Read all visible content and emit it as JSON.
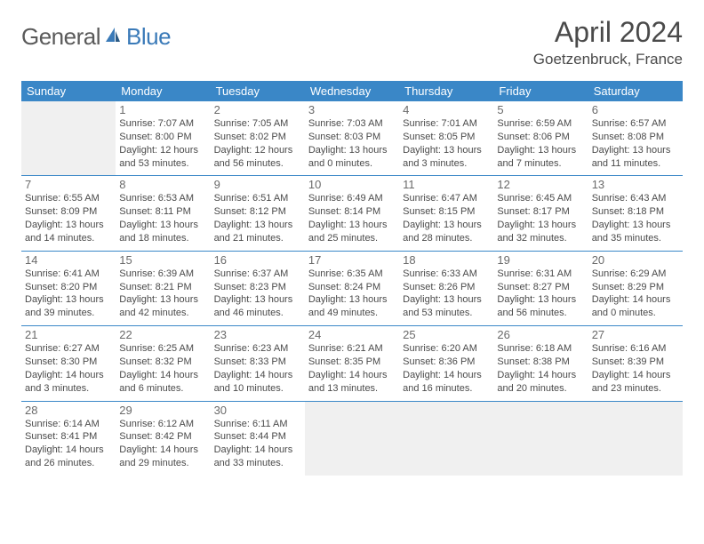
{
  "brand": {
    "part1": "General",
    "part2": "Blue"
  },
  "title": "April 2024",
  "location": "Goetzenbruck, France",
  "colors": {
    "header_bg": "#3a87c7",
    "header_fg": "#ffffff",
    "rule": "#3a87c7",
    "shaded_bg": "#f0f0f0",
    "text": "#4a4a4a",
    "brand_blue": "#3a7ab8"
  },
  "dayNames": [
    "Sunday",
    "Monday",
    "Tuesday",
    "Wednesday",
    "Thursday",
    "Friday",
    "Saturday"
  ],
  "weeks": [
    [
      {
        "empty": true,
        "shaded": true
      },
      {
        "day": "1",
        "sunrise": "Sunrise: 7:07 AM",
        "sunset": "Sunset: 8:00 PM",
        "dl1": "Daylight: 12 hours",
        "dl2": "and 53 minutes."
      },
      {
        "day": "2",
        "sunrise": "Sunrise: 7:05 AM",
        "sunset": "Sunset: 8:02 PM",
        "dl1": "Daylight: 12 hours",
        "dl2": "and 56 minutes."
      },
      {
        "day": "3",
        "sunrise": "Sunrise: 7:03 AM",
        "sunset": "Sunset: 8:03 PM",
        "dl1": "Daylight: 13 hours",
        "dl2": "and 0 minutes."
      },
      {
        "day": "4",
        "sunrise": "Sunrise: 7:01 AM",
        "sunset": "Sunset: 8:05 PM",
        "dl1": "Daylight: 13 hours",
        "dl2": "and 3 minutes."
      },
      {
        "day": "5",
        "sunrise": "Sunrise: 6:59 AM",
        "sunset": "Sunset: 8:06 PM",
        "dl1": "Daylight: 13 hours",
        "dl2": "and 7 minutes."
      },
      {
        "day": "6",
        "sunrise": "Sunrise: 6:57 AM",
        "sunset": "Sunset: 8:08 PM",
        "dl1": "Daylight: 13 hours",
        "dl2": "and 11 minutes."
      }
    ],
    [
      {
        "day": "7",
        "sunrise": "Sunrise: 6:55 AM",
        "sunset": "Sunset: 8:09 PM",
        "dl1": "Daylight: 13 hours",
        "dl2": "and 14 minutes."
      },
      {
        "day": "8",
        "sunrise": "Sunrise: 6:53 AM",
        "sunset": "Sunset: 8:11 PM",
        "dl1": "Daylight: 13 hours",
        "dl2": "and 18 minutes."
      },
      {
        "day": "9",
        "sunrise": "Sunrise: 6:51 AM",
        "sunset": "Sunset: 8:12 PM",
        "dl1": "Daylight: 13 hours",
        "dl2": "and 21 minutes."
      },
      {
        "day": "10",
        "sunrise": "Sunrise: 6:49 AM",
        "sunset": "Sunset: 8:14 PM",
        "dl1": "Daylight: 13 hours",
        "dl2": "and 25 minutes."
      },
      {
        "day": "11",
        "sunrise": "Sunrise: 6:47 AM",
        "sunset": "Sunset: 8:15 PM",
        "dl1": "Daylight: 13 hours",
        "dl2": "and 28 minutes."
      },
      {
        "day": "12",
        "sunrise": "Sunrise: 6:45 AM",
        "sunset": "Sunset: 8:17 PM",
        "dl1": "Daylight: 13 hours",
        "dl2": "and 32 minutes."
      },
      {
        "day": "13",
        "sunrise": "Sunrise: 6:43 AM",
        "sunset": "Sunset: 8:18 PM",
        "dl1": "Daylight: 13 hours",
        "dl2": "and 35 minutes."
      }
    ],
    [
      {
        "day": "14",
        "sunrise": "Sunrise: 6:41 AM",
        "sunset": "Sunset: 8:20 PM",
        "dl1": "Daylight: 13 hours",
        "dl2": "and 39 minutes."
      },
      {
        "day": "15",
        "sunrise": "Sunrise: 6:39 AM",
        "sunset": "Sunset: 8:21 PM",
        "dl1": "Daylight: 13 hours",
        "dl2": "and 42 minutes."
      },
      {
        "day": "16",
        "sunrise": "Sunrise: 6:37 AM",
        "sunset": "Sunset: 8:23 PM",
        "dl1": "Daylight: 13 hours",
        "dl2": "and 46 minutes."
      },
      {
        "day": "17",
        "sunrise": "Sunrise: 6:35 AM",
        "sunset": "Sunset: 8:24 PM",
        "dl1": "Daylight: 13 hours",
        "dl2": "and 49 minutes."
      },
      {
        "day": "18",
        "sunrise": "Sunrise: 6:33 AM",
        "sunset": "Sunset: 8:26 PM",
        "dl1": "Daylight: 13 hours",
        "dl2": "and 53 minutes."
      },
      {
        "day": "19",
        "sunrise": "Sunrise: 6:31 AM",
        "sunset": "Sunset: 8:27 PM",
        "dl1": "Daylight: 13 hours",
        "dl2": "and 56 minutes."
      },
      {
        "day": "20",
        "sunrise": "Sunrise: 6:29 AM",
        "sunset": "Sunset: 8:29 PM",
        "dl1": "Daylight: 14 hours",
        "dl2": "and 0 minutes."
      }
    ],
    [
      {
        "day": "21",
        "sunrise": "Sunrise: 6:27 AM",
        "sunset": "Sunset: 8:30 PM",
        "dl1": "Daylight: 14 hours",
        "dl2": "and 3 minutes."
      },
      {
        "day": "22",
        "sunrise": "Sunrise: 6:25 AM",
        "sunset": "Sunset: 8:32 PM",
        "dl1": "Daylight: 14 hours",
        "dl2": "and 6 minutes."
      },
      {
        "day": "23",
        "sunrise": "Sunrise: 6:23 AM",
        "sunset": "Sunset: 8:33 PM",
        "dl1": "Daylight: 14 hours",
        "dl2": "and 10 minutes."
      },
      {
        "day": "24",
        "sunrise": "Sunrise: 6:21 AM",
        "sunset": "Sunset: 8:35 PM",
        "dl1": "Daylight: 14 hours",
        "dl2": "and 13 minutes."
      },
      {
        "day": "25",
        "sunrise": "Sunrise: 6:20 AM",
        "sunset": "Sunset: 8:36 PM",
        "dl1": "Daylight: 14 hours",
        "dl2": "and 16 minutes."
      },
      {
        "day": "26",
        "sunrise": "Sunrise: 6:18 AM",
        "sunset": "Sunset: 8:38 PM",
        "dl1": "Daylight: 14 hours",
        "dl2": "and 20 minutes."
      },
      {
        "day": "27",
        "sunrise": "Sunrise: 6:16 AM",
        "sunset": "Sunset: 8:39 PM",
        "dl1": "Daylight: 14 hours",
        "dl2": "and 23 minutes."
      }
    ],
    [
      {
        "day": "28",
        "sunrise": "Sunrise: 6:14 AM",
        "sunset": "Sunset: 8:41 PM",
        "dl1": "Daylight: 14 hours",
        "dl2": "and 26 minutes."
      },
      {
        "day": "29",
        "sunrise": "Sunrise: 6:12 AM",
        "sunset": "Sunset: 8:42 PM",
        "dl1": "Daylight: 14 hours",
        "dl2": "and 29 minutes."
      },
      {
        "day": "30",
        "sunrise": "Sunrise: 6:11 AM",
        "sunset": "Sunset: 8:44 PM",
        "dl1": "Daylight: 14 hours",
        "dl2": "and 33 minutes."
      },
      {
        "empty": true,
        "shaded": true
      },
      {
        "empty": true,
        "shaded": true
      },
      {
        "empty": true,
        "shaded": true
      },
      {
        "empty": true,
        "shaded": true
      }
    ]
  ]
}
